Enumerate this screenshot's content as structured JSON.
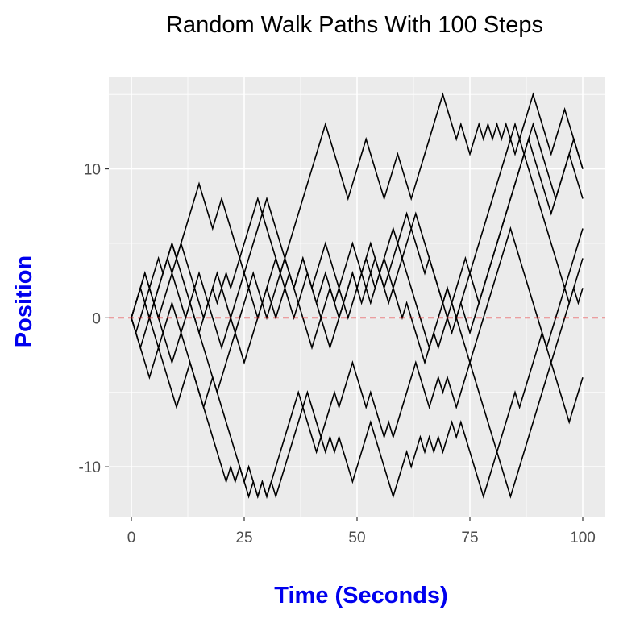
{
  "chart_data": {
    "type": "line",
    "title": "Random Walk Paths With 100 Steps",
    "xlabel": "Time (Seconds)",
    "ylabel": "Position",
    "xlim": [
      -5,
      105
    ],
    "ylim": [
      -13.4,
      16.2
    ],
    "x_ticks": [
      0,
      25,
      50,
      75,
      100
    ],
    "y_ticks": [
      -10,
      0,
      10
    ],
    "grid": true,
    "reference_line": {
      "y": 0,
      "color": "#e31a1c",
      "style": "dashed"
    },
    "colors": {
      "line": "#000000",
      "panel": "#ebebeb",
      "grid": "#ffffff",
      "axis_title": "#0000ee",
      "tick_label": "#4d4d4d"
    },
    "series": [
      {
        "values": [
          0,
          1,
          2,
          3,
          2,
          3,
          4,
          3,
          4,
          5,
          4,
          5,
          6,
          7,
          8,
          9,
          8,
          7,
          6,
          7,
          8,
          7,
          6,
          5,
          4,
          3,
          4,
          5,
          6,
          7,
          8,
          7,
          6,
          5,
          4,
          3,
          2,
          3,
          4,
          3,
          2,
          3,
          4,
          5,
          4,
          3,
          2,
          1,
          0,
          1,
          2,
          3,
          2,
          1,
          2,
          3,
          4,
          5,
          6,
          5,
          4,
          5,
          6,
          7,
          6,
          5,
          4,
          3,
          2,
          1,
          0,
          -1,
          0,
          1,
          2,
          3,
          4,
          5,
          6,
          7,
          8,
          9,
          10,
          11,
          12,
          13,
          12,
          11,
          10,
          9,
          8,
          7,
          6,
          5,
          4,
          3,
          2,
          1,
          2,
          1,
          2
        ]
      },
      {
        "values": [
          0,
          1,
          2,
          1,
          0,
          1,
          2,
          3,
          4,
          5,
          4,
          3,
          2,
          1,
          0,
          -1,
          -2,
          -3,
          -4,
          -5,
          -6,
          -7,
          -8,
          -9,
          -10,
          -11,
          -12,
          -11,
          -12,
          -11,
          -12,
          -11,
          -12,
          -11,
          -10,
          -9,
          -8,
          -7,
          -6,
          -5,
          -6,
          -7,
          -8,
          -7,
          -6,
          -5,
          -6,
          -5,
          -4,
          -3,
          -4,
          -5,
          -6,
          -5,
          -6,
          -7,
          -8,
          -7,
          -8,
          -7,
          -6,
          -5,
          -4,
          -3,
          -4,
          -5,
          -6,
          -5,
          -4,
          -5,
          -4,
          -5,
          -6,
          -5,
          -4,
          -3,
          -2,
          -1,
          0,
          1,
          2,
          3,
          4,
          5,
          6,
          5,
          4,
          3,
          2,
          1,
          0,
          -1,
          -2,
          -1,
          0,
          1,
          2,
          3,
          4,
          5,
          6
        ]
      },
      {
        "values": [
          0,
          -1,
          -2,
          -3,
          -4,
          -3,
          -2,
          -1,
          0,
          1,
          0,
          -1,
          -2,
          -3,
          -4,
          -5,
          -6,
          -7,
          -8,
          -9,
          -10,
          -11,
          -10,
          -11,
          -10,
          -11,
          -10,
          -11,
          -12,
          -11,
          -12,
          -11,
          -10,
          -9,
          -8,
          -7,
          -6,
          -5,
          -6,
          -7,
          -8,
          -9,
          -8,
          -9,
          -8,
          -9,
          -8,
          -9,
          -10,
          -11,
          -10,
          -9,
          -8,
          -7,
          -8,
          -9,
          -10,
          -11,
          -12,
          -11,
          -10,
          -9,
          -10,
          -9,
          -8,
          -9,
          -8,
          -9,
          -8,
          -9,
          -8,
          -7,
          -8,
          -7,
          -8,
          -9,
          -10,
          -11,
          -12,
          -11,
          -10,
          -9,
          -8,
          -7,
          -6,
          -5,
          -6,
          -5,
          -4,
          -3,
          -2,
          -1,
          -2,
          -3,
          -4,
          -5,
          -6,
          -7,
          -6,
          -5,
          -4
        ]
      },
      {
        "values": [
          0,
          -1,
          0,
          1,
          0,
          -1,
          -2,
          -3,
          -4,
          -5,
          -6,
          -5,
          -4,
          -3,
          -4,
          -5,
          -6,
          -5,
          -4,
          -5,
          -4,
          -3,
          -2,
          -1,
          0,
          1,
          2,
          3,
          2,
          1,
          0,
          1,
          2,
          3,
          4,
          5,
          6,
          7,
          8,
          9,
          10,
          11,
          12,
          13,
          12,
          11,
          10,
          9,
          8,
          9,
          10,
          11,
          12,
          11,
          10,
          9,
          8,
          9,
          10,
          11,
          10,
          9,
          8,
          9,
          10,
          11,
          12,
          13,
          14,
          15,
          14,
          13,
          12,
          13,
          12,
          11,
          12,
          13,
          12,
          13,
          12,
          13,
          12,
          13,
          12,
          11,
          12,
          13,
          14,
          15,
          14,
          13,
          12,
          11,
          12,
          13,
          14,
          13,
          12,
          11,
          10
        ]
      },
      {
        "values": [
          0,
          1,
          2,
          3,
          2,
          1,
          0,
          -1,
          -2,
          -3,
          -2,
          -1,
          0,
          1,
          0,
          -1,
          0,
          1,
          2,
          3,
          2,
          1,
          0,
          -1,
          -2,
          -3,
          -2,
          -1,
          0,
          1,
          2,
          1,
          0,
          1,
          2,
          3,
          2,
          1,
          0,
          -1,
          -2,
          -1,
          0,
          1,
          2,
          1,
          0,
          1,
          2,
          3,
          2,
          1,
          2,
          3,
          4,
          3,
          2,
          1,
          2,
          3,
          4,
          3,
          2,
          1,
          0,
          -1,
          -2,
          -1,
          0,
          1,
          2,
          1,
          0,
          -1,
          -2,
          -3,
          -4,
          -5,
          -6,
          -7,
          -8,
          -9,
          -10,
          -11,
          -12,
          -11,
          -10,
          -9,
          -8,
          -7,
          -6,
          -5,
          -4,
          -3,
          -2,
          -1,
          0,
          1,
          2,
          3,
          4
        ]
      },
      {
        "values": [
          0,
          1,
          2,
          1,
          2,
          1,
          0,
          1,
          2,
          3,
          4,
          5,
          4,
          3,
          2,
          1,
          0,
          1,
          2,
          1,
          2,
          3,
          2,
          3,
          4,
          5,
          6,
          7,
          8,
          7,
          6,
          5,
          4,
          3,
          4,
          3,
          2,
          3,
          4,
          3,
          2,
          1,
          0,
          -1,
          -2,
          -1,
          0,
          1,
          2,
          3,
          2,
          3,
          4,
          3,
          2,
          3,
          4,
          3,
          2,
          1,
          0,
          1,
          0,
          -1,
          -2,
          -3,
          -2,
          -1,
          -2,
          -1,
          0,
          1,
          2,
          3,
          4,
          3,
          2,
          1,
          2,
          3,
          4,
          5,
          6,
          7,
          8,
          9,
          10,
          11,
          12,
          11,
          10,
          9,
          8,
          7,
          8,
          9,
          10,
          11,
          10,
          9,
          8
        ]
      },
      {
        "values": [
          0,
          -1,
          -2,
          -1,
          0,
          1,
          2,
          3,
          4,
          3,
          2,
          1,
          0,
          1,
          2,
          3,
          2,
          1,
          0,
          -1,
          -2,
          -1,
          0,
          1,
          2,
          3,
          2,
          1,
          0,
          1,
          2,
          3,
          4,
          3,
          2,
          1,
          0,
          1,
          2,
          3,
          2,
          1,
          2,
          3,
          2,
          1,
          2,
          3,
          4,
          5,
          4,
          3,
          4,
          5,
          4,
          3,
          2,
          3,
          4,
          5,
          6,
          7,
          6,
          5,
          4,
          3,
          4,
          3,
          2,
          1,
          2,
          1,
          0,
          1,
          0,
          -1,
          0,
          1,
          2,
          3,
          4,
          5,
          6,
          7,
          8,
          9,
          10,
          11,
          12,
          13,
          12,
          11,
          10,
          9,
          8,
          9,
          10,
          11,
          12,
          11,
          10
        ]
      }
    ]
  }
}
